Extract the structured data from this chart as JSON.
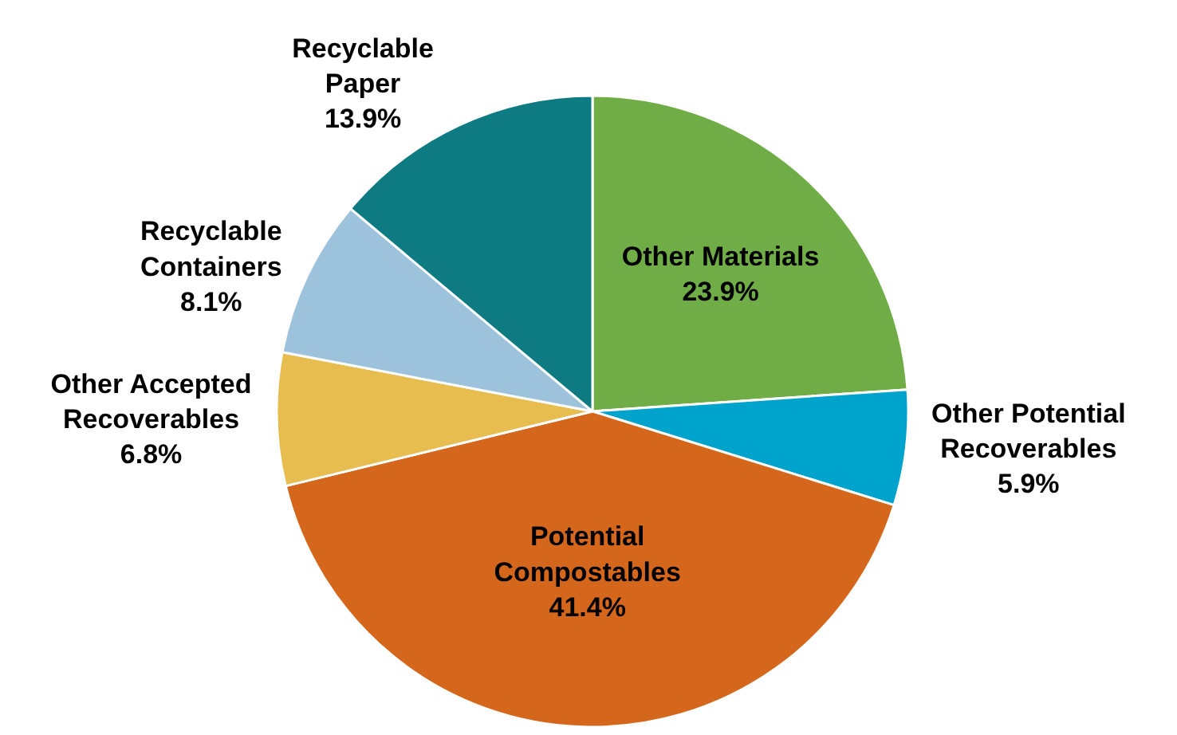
{
  "chart_data": {
    "type": "pie",
    "categories": [
      "Other Materials",
      "Other Potential Recoverables",
      "Potential Compostables",
      "Other Accepted Recoverables",
      "Recyclable Containers",
      "Recyclable Paper"
    ],
    "values": [
      23.9,
      5.9,
      41.4,
      6.8,
      8.1,
      13.9
    ],
    "value_labels": [
      "23.9%",
      "5.9%",
      "41.4%",
      "6.8%",
      "8.1%",
      "13.9%"
    ],
    "colors": [
      "#70ad47",
      "#00a3cc",
      "#d5671c",
      "#e8bd50",
      "#9dc3dc",
      "#0e7a82"
    ],
    "legend": false
  }
}
